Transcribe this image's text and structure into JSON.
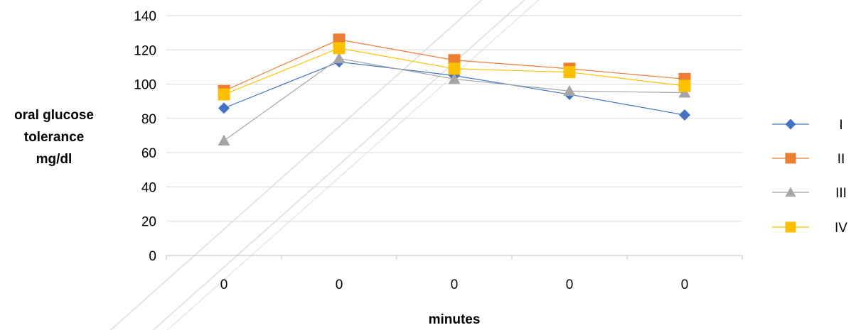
{
  "chart_data": {
    "type": "line",
    "categories": [
      "0",
      "0",
      "0",
      "0",
      "0"
    ],
    "xlabel": "minutes",
    "ylabel_lines": [
      "oral glucose",
      "tolerance",
      "mg/dl"
    ],
    "ylim": [
      0,
      140
    ],
    "yticks": [
      "0",
      "20",
      "40",
      "60",
      "80",
      "100",
      "120",
      "140"
    ],
    "grid": "horizontal",
    "legend_position": "right",
    "series": [
      {
        "name": "I",
        "values": [
          86,
          113,
          105,
          94,
          82
        ],
        "color": "#4472C4",
        "marker": "diamond"
      },
      {
        "name": "II",
        "values": [
          96,
          126,
          114,
          109,
          103
        ],
        "color": "#ED7D31",
        "marker": "square"
      },
      {
        "name": "III",
        "values": [
          67,
          115,
          103,
          96,
          95
        ],
        "color": "#A5A5A5",
        "marker": "triangle"
      },
      {
        "name": "IV",
        "values": [
          94,
          121,
          109,
          107,
          99
        ],
        "color": "#FFC000",
        "marker": "square"
      }
    ]
  }
}
